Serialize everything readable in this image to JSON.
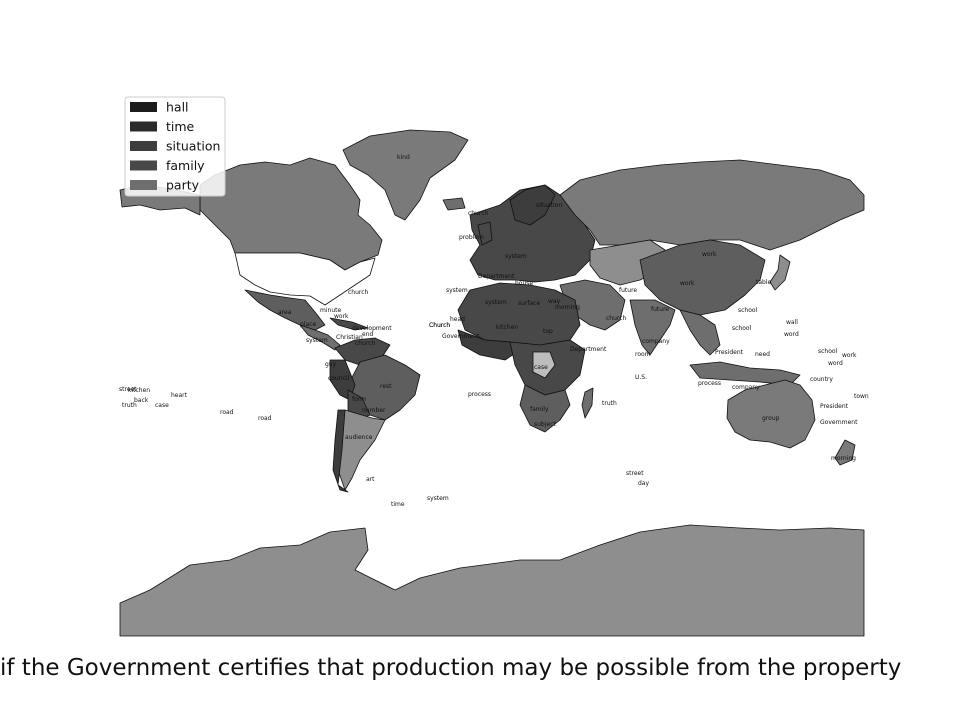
{
  "legend": [
    {
      "label": "hall",
      "color": "#1c1c1c"
    },
    {
      "label": "time",
      "color": "#2b2b2b"
    },
    {
      "label": "situation",
      "color": "#3d3d3d"
    },
    {
      "label": "family",
      "color": "#484848"
    },
    {
      "label": "party",
      "color": "#6e6e6e"
    }
  ],
  "fill_colors": {
    "light": "#8e8e8e",
    "mid": "#7a7a7a",
    "dark": "#5e5e5e",
    "pale": "#bdbdbd",
    "ocean": "#ffffff"
  },
  "caption": "if the Government certifies that production may be possible from the property",
  "region_labels": {
    "greenland": "kind",
    "iceland": "church",
    "usa": "church",
    "mexico": "area",
    "central_america_1": "place",
    "central_america_2": "work",
    "central_america_3": "Christian",
    "central_america_4": "church",
    "caribbean_1": "development",
    "caribbean_2": "minute",
    "caribbean_3": "end",
    "colombia": "system",
    "venezuela": "Church",
    "ecuador": "guy",
    "peru": "council",
    "brazil": "rest",
    "bolivia": "form",
    "paraguay": "number",
    "chile": "audience",
    "argentina": "art",
    "pacific_1": "street",
    "pacific_2": "kitchen",
    "pacific_3": "truth",
    "pacific_4": "back",
    "pacific_5": "case",
    "pacific_6": "heart",
    "pacific_7": "road",
    "pacific_8": "road",
    "atlantic_1": "process",
    "south_atlantic_1": "time",
    "south_atlantic_2": "system",
    "europe_1": "situation",
    "europe_2": "problem",
    "europe_3": "Department",
    "europe_4": "house",
    "europe_5": "system",
    "north_africa_1": "system",
    "north_africa_2": "system",
    "north_africa_3": "surface",
    "north_africa_4": "way",
    "west_africa_1": "Church",
    "west_africa_2": "Government",
    "west_africa_3": "head",
    "west_africa_4": "kitchen",
    "central_africa_1": "top",
    "central_africa_2": "Department",
    "central_africa_3": "case",
    "southern_africa_1": "family",
    "southern_africa_2": "subject",
    "madagascar": "truth",
    "east_africa_1": "morning",
    "middle_east_1": "church",
    "middle_east_2": "future",
    "russia": "work",
    "china": "work",
    "japan": "school",
    "korea": "table",
    "south_asia_1": "future",
    "india": "company",
    "indian_ocean_1": "room",
    "indian_ocean_2": "U.S.",
    "indian_ocean_3": "street",
    "indian_ocean_4": "day",
    "se_asia_1": "school",
    "se_asia_2": "President",
    "se_asia_3": "need",
    "se_asia_4": "process",
    "se_asia_5": "company",
    "australia": "group",
    "pacific_asia_1": "wall",
    "pacific_asia_2": "word",
    "pacific_asia_3": "school",
    "pacific_asia_4": "work",
    "pacific_asia_5": "word",
    "pacific_asia_6": "country",
    "pacific_asia_7": "town",
    "pacific_asia_8": "President",
    "pacific_asia_9": "Government",
    "new_zealand": "morning"
  }
}
